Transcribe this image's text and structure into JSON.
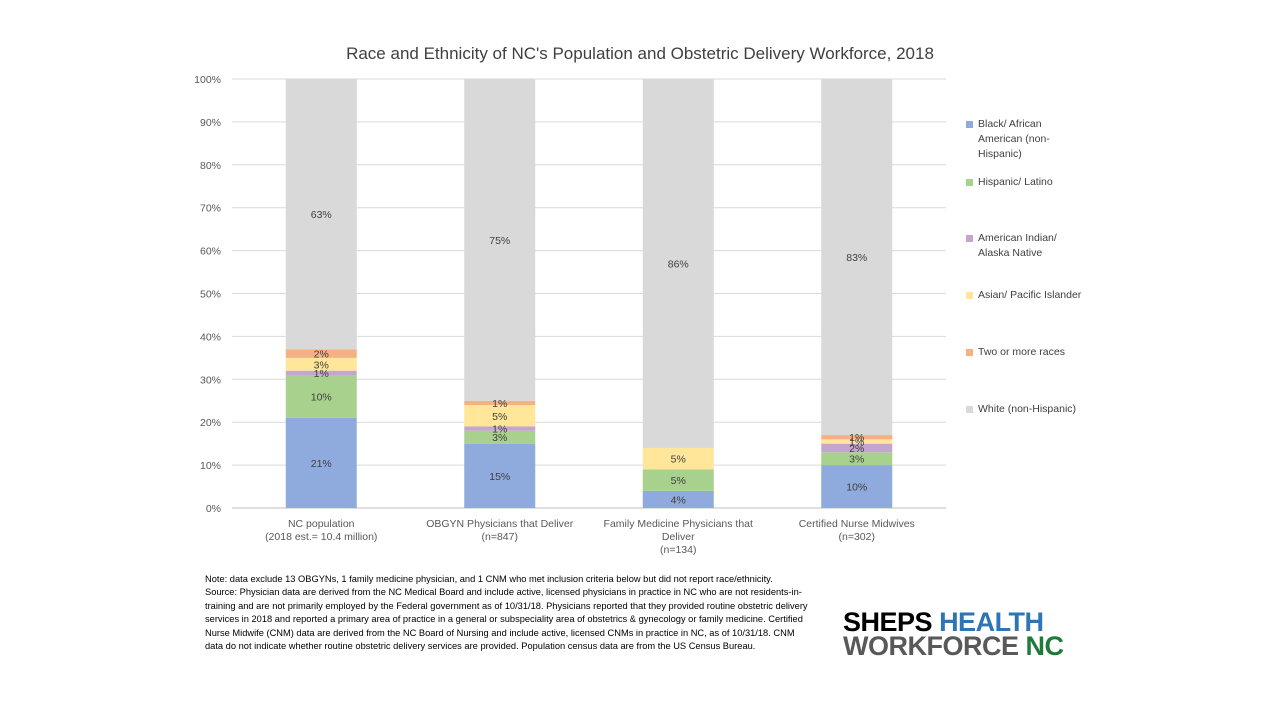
{
  "chart_data": {
    "type": "bar",
    "stacked": true,
    "normalized": true,
    "title": "Race and Ethnicity of NC's Population and Obstetric Delivery Workforce, 2018",
    "categories": [
      [
        "NC population",
        "(2018 est.= 10.4 million)"
      ],
      [
        "OBGYN Physicians that Deliver",
        "(n=847)"
      ],
      [
        "Family Medicine Physicians that",
        "Deliver",
        "(n=134)"
      ],
      [
        "Certified Nurse Midwives",
        "(n=302)"
      ]
    ],
    "y_ticks": [
      "0%",
      "10%",
      "20%",
      "30%",
      "40%",
      "50%",
      "60%",
      "70%",
      "80%",
      "90%",
      "100%"
    ],
    "ylim": [
      0,
      100
    ],
    "grid": true,
    "legend_position": "right",
    "series": [
      {
        "name": "Black/ African American (non-Hispanic)",
        "legend_lines": [
          "Black/ African",
          "American (non-",
          "Hispanic)"
        ],
        "color": "#8FAADC",
        "values": [
          21,
          15,
          4,
          10
        ],
        "labels": [
          "21%",
          "15%",
          "4%",
          "10%"
        ]
      },
      {
        "name": "Hispanic/ Latino",
        "legend_lines": [
          "Hispanic/ Latino"
        ],
        "color": "#A9D18E",
        "values": [
          10,
          3,
          5,
          3
        ],
        "labels": [
          "10%",
          "3%",
          "5%",
          "3%"
        ]
      },
      {
        "name": "American Indian/ Alaska Native",
        "legend_lines": [
          "American Indian/",
          "Alaska Native"
        ],
        "color": "#C5A5CF",
        "values": [
          1,
          1,
          0,
          2
        ],
        "labels": [
          "1%",
          "1%",
          "",
          "2%"
        ]
      },
      {
        "name": "Asian/ Pacific Islander",
        "legend_lines": [
          "Asian/ Pacific Islander"
        ],
        "color": "#FFE699",
        "values": [
          3,
          5,
          5,
          1
        ],
        "labels": [
          "3%",
          "5%",
          "5%",
          "1%"
        ]
      },
      {
        "name": "Two or more races",
        "legend_lines": [
          "Two or more races"
        ],
        "color": "#F4B183",
        "values": [
          2,
          1,
          0,
          1
        ],
        "labels": [
          "2%",
          "1%",
          "",
          "1%"
        ]
      },
      {
        "name": "White (non-Hispanic)",
        "legend_lines": [
          "White (non-Hispanic)"
        ],
        "color": "#D9D9D9",
        "values": [
          63,
          75,
          86,
          83
        ],
        "labels": [
          "63%",
          "75%",
          "86%",
          "83%"
        ]
      }
    ]
  },
  "note": {
    "line1": "Note: data exclude 13 OBGYNs, 1 family medicine physician, and 1 CNM who met inclusion criteria below but did not report race/ethnicity.",
    "line2": "Source: Physician data are derived from the NC Medical Board and include active, licensed physicians in practice in NC who are not residents-in-training and are not primarily employed by the Federal government as of 10/31/18.  Physicians reported that they provided routine obstetric delivery services in 2018 and reported a primary area of practice in a general or subspeciality area of obstetrics & gynecology or family medicine.  Certified Nurse Midwife (CNM) data are derived from the NC Board of Nursing and include active, licensed CNMs in practice in NC, as of 10/31/18.  CNM data do not indicate whether routine obstetric delivery services are provided.  Population census data are from the US Census Bureau."
  },
  "logo": {
    "word1": "SHEPS",
    "word2": "HEALTH",
    "word3": "WORKFORCE",
    "word4": "NC"
  }
}
